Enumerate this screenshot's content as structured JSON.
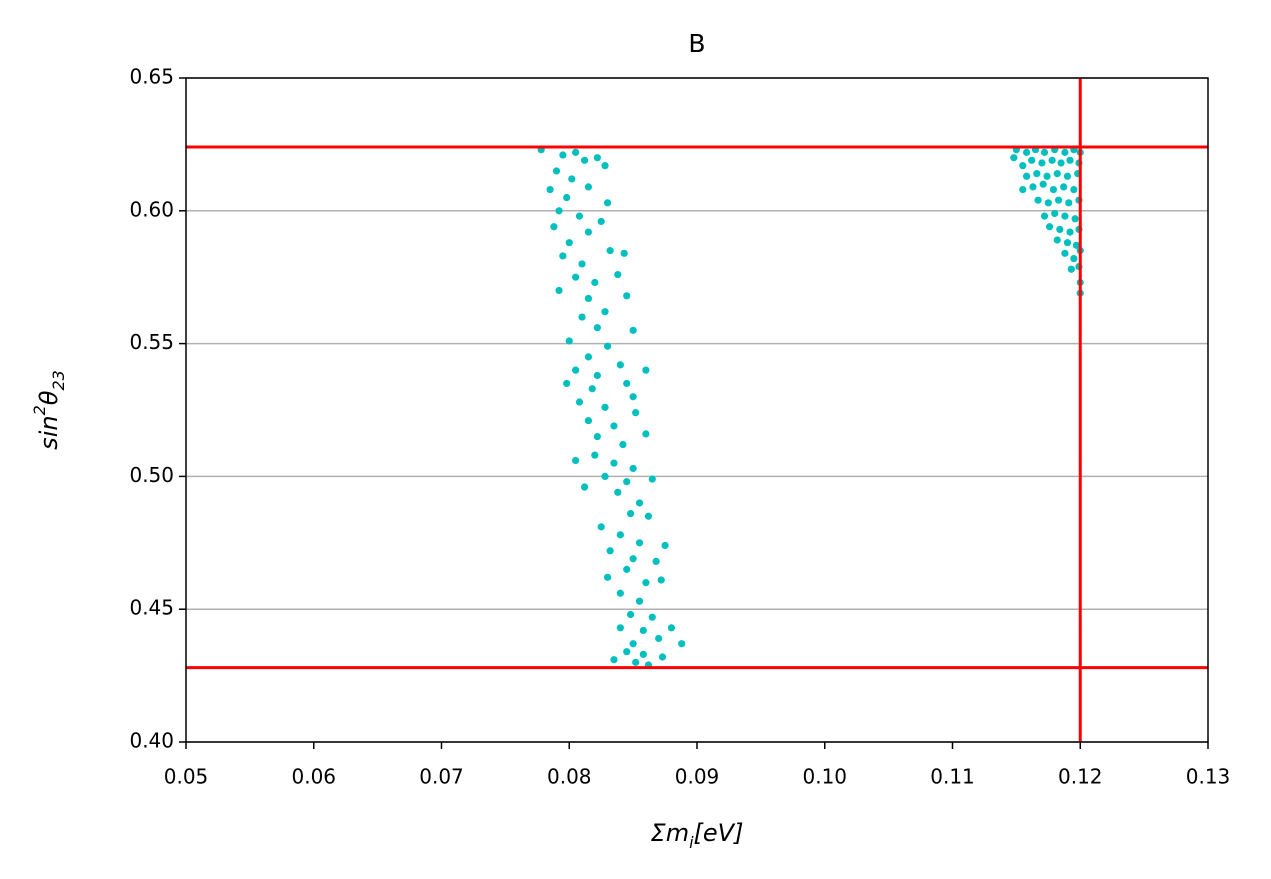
{
  "chart_data": {
    "type": "scatter",
    "title": "B",
    "xlabel": [
      "Σm",
      "i",
      "[eV]"
    ],
    "ylabel": [
      "sin",
      "2",
      "θ",
      "23"
    ],
    "xlim": [
      0.05,
      0.13
    ],
    "ylim": [
      0.4,
      0.65
    ],
    "xticks": [
      0.05,
      0.06,
      0.07,
      0.08,
      0.09,
      {
        "value": 0.1,
        "label": "0.10"
      },
      0.11,
      0.12,
      0.13
    ],
    "yticks": [
      {
        "value": 0.4,
        "label": "0.40"
      },
      0.45,
      {
        "value": 0.5,
        "label": "0.50"
      },
      0.55,
      {
        "value": 0.6,
        "label": "0.60"
      },
      0.65
    ],
    "grid": "y",
    "color": "#00bfbf",
    "reference_lines": {
      "color": "#ff0000",
      "y": [
        0.428,
        0.624
      ],
      "x": [
        0.12
      ]
    },
    "x": [
      0.0778,
      0.0795,
      0.0805,
      0.0812,
      0.079,
      0.0802,
      0.0822,
      0.0785,
      0.0798,
      0.0815,
      0.0828,
      0.0792,
      0.0808,
      0.083,
      0.0788,
      0.0815,
      0.08,
      0.0825,
      0.0795,
      0.081,
      0.0832,
      0.0843,
      0.0805,
      0.082,
      0.0838,
      0.0792,
      0.0815,
      0.0828,
      0.0845,
      0.081,
      0.0822,
      0.085,
      0.08,
      0.083,
      0.0815,
      0.0805,
      0.0822,
      0.084,
      0.0798,
      0.0818,
      0.0845,
      0.086,
      0.0808,
      0.0828,
      0.085,
      0.0815,
      0.0835,
      0.0852,
      0.0822,
      0.0842,
      0.082,
      0.086,
      0.0805,
      0.0835,
      0.085,
      0.0828,
      0.0845,
      0.0865,
      0.0838,
      0.0855,
      0.0812,
      0.0848,
      0.0862,
      0.0825,
      0.084,
      0.0855,
      0.0875,
      0.0832,
      0.085,
      0.0868,
      0.0845,
      0.083,
      0.086,
      0.0872,
      0.084,
      0.0855,
      0.0848,
      0.0865,
      0.084,
      0.0858,
      0.088,
      0.085,
      0.087,
      0.0888,
      0.0835,
      0.0852,
      0.0862,
      0.0873,
      0.0845,
      0.0858,
      0.115,
      0.1158,
      0.1165,
      0.1172,
      0.118,
      0.1188,
      0.1195,
      0.12,
      0.1148,
      0.1155,
      0.1162,
      0.117,
      0.1178,
      0.1185,
      0.1192,
      0.1199,
      0.1158,
      0.1166,
      0.1174,
      0.1182,
      0.119,
      0.1198,
      0.1155,
      0.1163,
      0.1171,
      0.1179,
      0.1187,
      0.1195,
      0.1167,
      0.1175,
      0.1183,
      0.1191,
      0.1199,
      0.1172,
      0.118,
      0.1188,
      0.1196,
      0.1176,
      0.1184,
      0.1192,
      0.1199,
      0.1182,
      0.119,
      0.1197,
      0.1188,
      0.1195,
      0.12,
      0.1193,
      0.1199,
      0.12,
      0.12
    ],
    "values": [
      0.623,
      0.621,
      0.622,
      0.619,
      0.615,
      0.612,
      0.62,
      0.608,
      0.605,
      0.609,
      0.617,
      0.6,
      0.598,
      0.603,
      0.594,
      0.592,
      0.588,
      0.596,
      0.583,
      0.58,
      0.585,
      0.584,
      0.575,
      0.573,
      0.576,
      0.57,
      0.567,
      0.562,
      0.568,
      0.56,
      0.556,
      0.555,
      0.551,
      0.549,
      0.545,
      0.54,
      0.538,
      0.542,
      0.535,
      0.533,
      0.535,
      0.54,
      0.528,
      0.526,
      0.53,
      0.521,
      0.519,
      0.524,
      0.515,
      0.512,
      0.508,
      0.516,
      0.506,
      0.505,
      0.503,
      0.5,
      0.498,
      0.499,
      0.494,
      0.49,
      0.496,
      0.486,
      0.485,
      0.481,
      0.478,
      0.475,
      0.474,
      0.472,
      0.469,
      0.468,
      0.465,
      0.462,
      0.46,
      0.461,
      0.456,
      0.453,
      0.448,
      0.447,
      0.443,
      0.442,
      0.443,
      0.437,
      0.439,
      0.437,
      0.431,
      0.43,
      0.429,
      0.432,
      0.434,
      0.433,
      0.623,
      0.622,
      0.623,
      0.622,
      0.623,
      0.622,
      0.623,
      0.622,
      0.62,
      0.617,
      0.619,
      0.618,
      0.619,
      0.618,
      0.619,
      0.618,
      0.613,
      0.614,
      0.613,
      0.614,
      0.613,
      0.614,
      0.608,
      0.609,
      0.61,
      0.608,
      0.609,
      0.608,
      0.604,
      0.603,
      0.604,
      0.603,
      0.604,
      0.598,
      0.599,
      0.598,
      0.597,
      0.594,
      0.593,
      0.592,
      0.593,
      0.589,
      0.588,
      0.587,
      0.584,
      0.582,
      0.585,
      0.578,
      0.579,
      0.573,
      0.569
    ]
  }
}
